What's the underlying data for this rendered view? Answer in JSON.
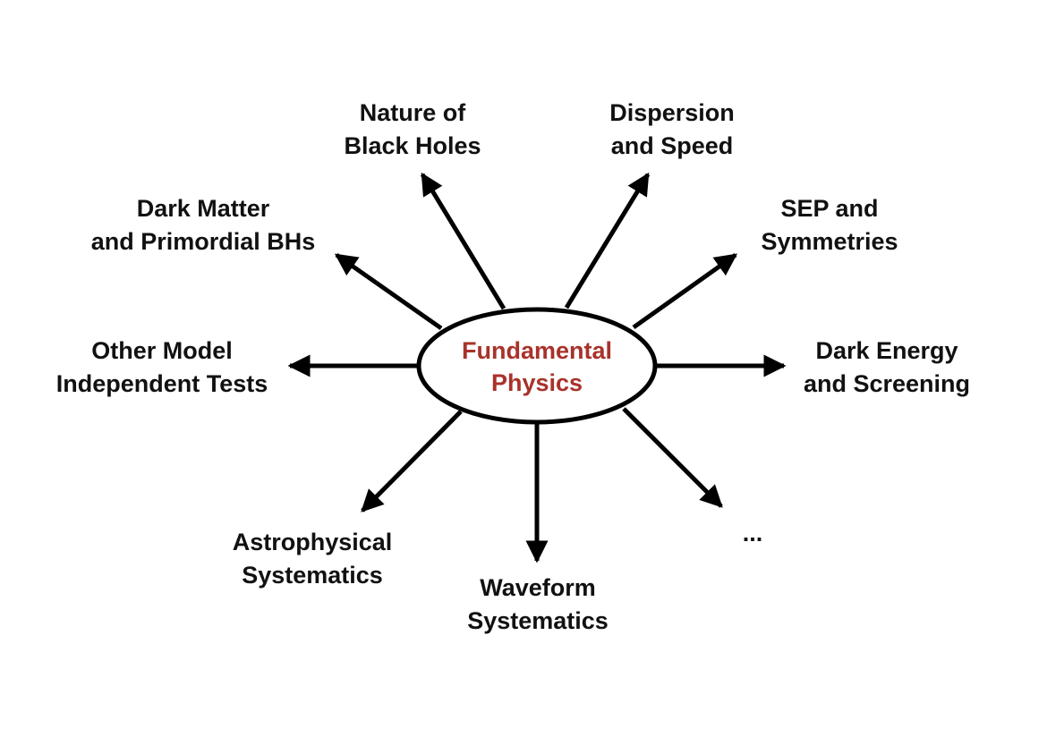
{
  "colors": {
    "center_text": "#a8322a",
    "text": "#111111",
    "stroke": "#000000"
  },
  "center": {
    "line1": "Fundamental",
    "line2": "Physics"
  },
  "nodes": {
    "nature_bh": {
      "line1": "Nature of",
      "line2": "Black Holes"
    },
    "dispersion": {
      "line1": "Dispersion",
      "line2": "and Speed"
    },
    "dark_matter": {
      "line1": "Dark Matter",
      "line2": "and Primordial BHs"
    },
    "sep": {
      "line1": "SEP and",
      "line2": "Symmetries"
    },
    "other_model": {
      "line1": "Other Model",
      "line2": "Independent Tests"
    },
    "dark_energy": {
      "line1": "Dark Energy",
      "line2": "and Screening"
    },
    "astro_sys": {
      "line1": "Astrophysical",
      "line2": "Systematics"
    },
    "waveform_sys": {
      "line1": "Waveform",
      "line2": "Systematics"
    },
    "more": {
      "line1": "..."
    }
  }
}
